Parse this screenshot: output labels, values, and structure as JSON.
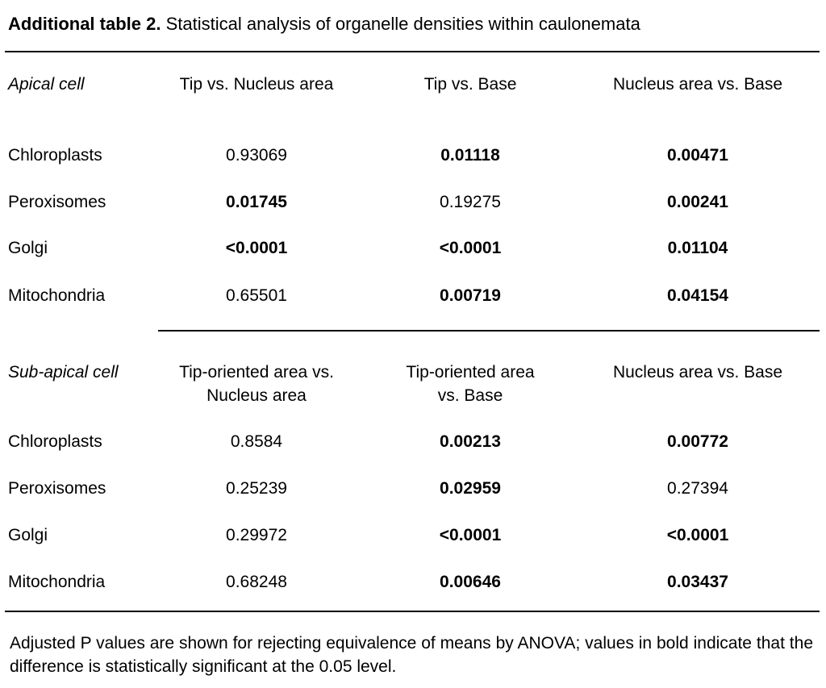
{
  "caption": {
    "label": "Additional table 2.",
    "text": "Statistical analysis of organelle densities within caulonemata"
  },
  "apical": {
    "section_label": "Apical cell",
    "headers": [
      "Tip vs. Nucleus area",
      "Tip vs. Base",
      "Nucleus area vs. Base"
    ],
    "rows": [
      {
        "label": "Chloroplasts",
        "values": [
          {
            "text": "0.93069",
            "bold": false
          },
          {
            "text": "0.01118",
            "bold": true
          },
          {
            "text": "0.00471",
            "bold": true
          }
        ]
      },
      {
        "label": "Peroxisomes",
        "values": [
          {
            "text": "0.01745",
            "bold": true
          },
          {
            "text": "0.19275",
            "bold": false
          },
          {
            "text": "0.00241",
            "bold": true
          }
        ]
      },
      {
        "label": "Golgi",
        "values": [
          {
            "text": "<0.0001",
            "bold": true
          },
          {
            "text": "<0.0001",
            "bold": true
          },
          {
            "text": "0.01104",
            "bold": true
          }
        ]
      },
      {
        "label": "Mitochondria",
        "values": [
          {
            "text": "0.65501",
            "bold": false
          },
          {
            "text": "0.00719",
            "bold": true
          },
          {
            "text": "0.04154",
            "bold": true
          }
        ]
      }
    ]
  },
  "subapical": {
    "section_label": "Sub-apical cell",
    "headers": [
      "Tip-oriented area vs.\nNucleus area",
      "Tip-oriented area\nvs. Base",
      "Nucleus area vs. Base"
    ],
    "rows": [
      {
        "label": "Chloroplasts",
        "values": [
          {
            "text": "0.8584",
            "bold": false
          },
          {
            "text": "0.00213",
            "bold": true
          },
          {
            "text": "0.00772",
            "bold": true
          }
        ]
      },
      {
        "label": "Peroxisomes",
        "values": [
          {
            "text": "0.25239",
            "bold": false
          },
          {
            "text": "0.02959",
            "bold": true
          },
          {
            "text": "0.27394",
            "bold": false
          }
        ]
      },
      {
        "label": "Golgi",
        "values": [
          {
            "text": "0.29972",
            "bold": false
          },
          {
            "text": "<0.0001",
            "bold": true
          },
          {
            "text": "<0.0001",
            "bold": true
          }
        ]
      },
      {
        "label": "Mitochondria",
        "values": [
          {
            "text": "0.68248",
            "bold": false
          },
          {
            "text": "0.00646",
            "bold": true
          },
          {
            "text": "0.03437",
            "bold": true
          }
        ]
      }
    ]
  },
  "footnote": "Adjusted P values are shown for rejecting equivalence of means by ANOVA; values in bold indicate that the difference is statistically significant at the 0.05 level."
}
